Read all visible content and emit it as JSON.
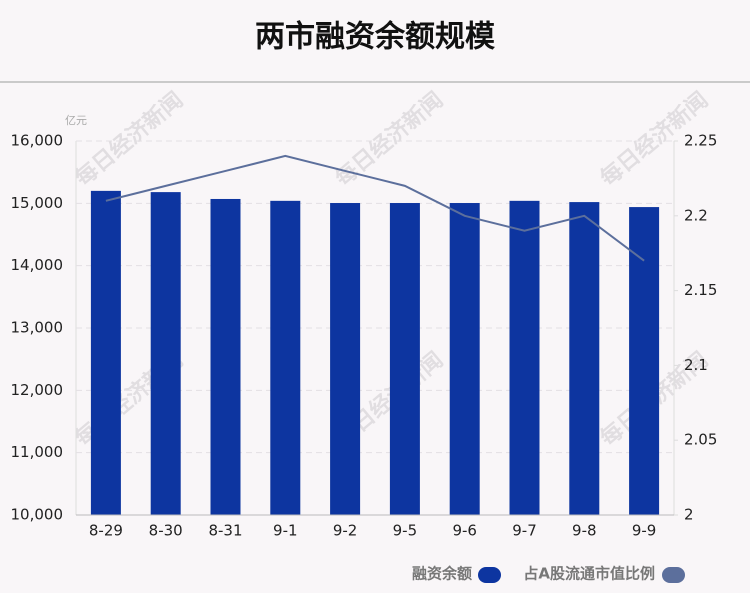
{
  "chart_data": {
    "type": "bar",
    "title": "两市融资余额规模",
    "y_unit": "亿元",
    "watermark": "每日经济新闻",
    "categories": [
      "8-29",
      "8-30",
      "8-31",
      "9-1",
      "9-2",
      "9-5",
      "9-6",
      "9-7",
      "9-8",
      "9-9"
    ],
    "series": [
      {
        "name": "融资余额",
        "type": "bar",
        "color": "#0d35a0",
        "values": [
          15200,
          15180,
          15070,
          15040,
          15005,
          15005,
          15005,
          15040,
          15020,
          14940
        ]
      },
      {
        "name": "占A股流通市值比例",
        "type": "line",
        "axis": "y2",
        "color": "#5c6f9c",
        "values": [
          2.21,
          2.22,
          2.23,
          2.24,
          2.23,
          2.22,
          2.2,
          2.19,
          2.2,
          2.17
        ]
      }
    ],
    "ylim": [
      10000,
      16000
    ],
    "yticks": [
      {
        "value": 10000,
        "label": "10,000"
      },
      {
        "value": 11000,
        "label": "11,000"
      },
      {
        "value": 12000,
        "label": "12,000"
      },
      {
        "value": 13000,
        "label": "13,000"
      },
      {
        "value": 14000,
        "label": "14,000"
      },
      {
        "value": 15000,
        "label": "15,000"
      },
      {
        "value": 16000,
        "label": "16,000"
      }
    ],
    "y2lim": [
      2,
      2.25
    ],
    "y2ticks": [
      2,
      2.05,
      2.1,
      2.15,
      2.2,
      2.25
    ],
    "grid": true
  }
}
